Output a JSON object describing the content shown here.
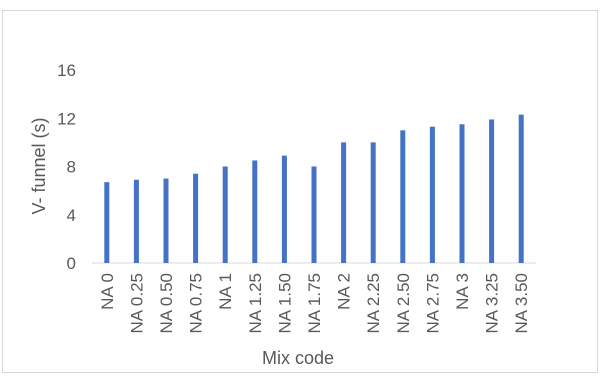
{
  "chart_data": {
    "type": "bar",
    "title": "",
    "xlabel": "Mix code",
    "ylabel": "V- funnel (s)",
    "ylim": [
      0,
      16
    ],
    "yticks": [
      "0",
      "4",
      "8",
      "12",
      "16"
    ],
    "grid": false,
    "legend": "none",
    "bar_color": "#4472c4",
    "categories": [
      "NA 0",
      "NA 0.25",
      "NA 0.50",
      "NA 0.75",
      "NA 1",
      "NA 1.25",
      "NA 1.50",
      "NA 1.75",
      "NA 2",
      "NA 2.25",
      "NA 2.50",
      "NA 2.75",
      "NA 3",
      "NA 3.25",
      "NA 3.50"
    ],
    "values": [
      6.7,
      6.9,
      7.0,
      7.4,
      8.0,
      8.5,
      8.9,
      8.0,
      10.0,
      10.0,
      11.0,
      11.3,
      11.5,
      11.9,
      12.3
    ]
  }
}
